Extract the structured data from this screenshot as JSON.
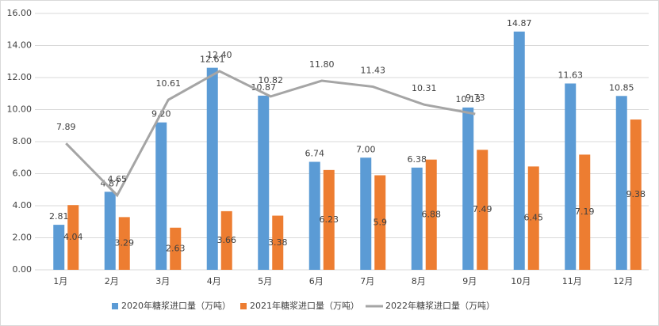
{
  "chart_data": {
    "type": "bar-line",
    "categories": [
      "1月",
      "2月",
      "3月",
      "4月",
      "5月",
      "6月",
      "7月",
      "8月",
      "9月",
      "10月",
      "11月",
      "12月"
    ],
    "series": [
      {
        "name": "2020年糖浆进口量（万吨）",
        "type": "bar",
        "color": "#5b9bd5",
        "values": [
          2.81,
          4.87,
          9.2,
          12.61,
          10.87,
          6.74,
          7.0,
          6.38,
          10.13,
          14.87,
          11.63,
          10.85
        ],
        "value_labels": [
          "2.81",
          "4.87",
          "9.20",
          "12.61",
          "10.87",
          "6.74",
          "7.00",
          "6.38",
          "10.13",
          "14.87",
          "11.63",
          "10.85"
        ]
      },
      {
        "name": "2021年糖浆进口量（万吨）",
        "type": "bar",
        "color": "#ed7d31",
        "values": [
          4.04,
          3.29,
          2.63,
          3.66,
          3.38,
          6.23,
          5.9,
          6.88,
          7.49,
          6.45,
          7.19,
          9.38
        ],
        "value_labels": [
          "4.04",
          "3.29",
          "2.63",
          "3.66",
          "3.38",
          "6.23",
          "5.9",
          "6.88",
          "7.49",
          "6.45",
          "7.19",
          "9.38"
        ]
      },
      {
        "name": "2022年糖浆进口量（万吨）",
        "type": "line",
        "color": "#a5a5a5",
        "values": [
          7.89,
          4.65,
          10.61,
          12.4,
          10.82,
          11.8,
          11.43,
          10.31,
          9.73,
          null,
          null,
          null
        ],
        "value_labels": [
          "7.89",
          "4.65",
          "10.61",
          "12.40",
          "10.82",
          "11.80",
          "11.43",
          "10.31",
          "9.73",
          null,
          null,
          null
        ]
      }
    ],
    "ylim": [
      0,
      16
    ],
    "yticks": [
      {
        "value": 0,
        "label": "0.00"
      },
      {
        "value": 2,
        "label": "2.00"
      },
      {
        "value": 4,
        "label": "4.00"
      },
      {
        "value": 6,
        "label": "6.00"
      },
      {
        "value": 8,
        "label": "8.00"
      },
      {
        "value": 10,
        "label": "10.00"
      },
      {
        "value": 12,
        "label": "12.00"
      },
      {
        "value": 14,
        "label": "14.00"
      },
      {
        "value": 16,
        "label": "16.00"
      }
    ],
    "grid": true,
    "legend": "bottom"
  }
}
